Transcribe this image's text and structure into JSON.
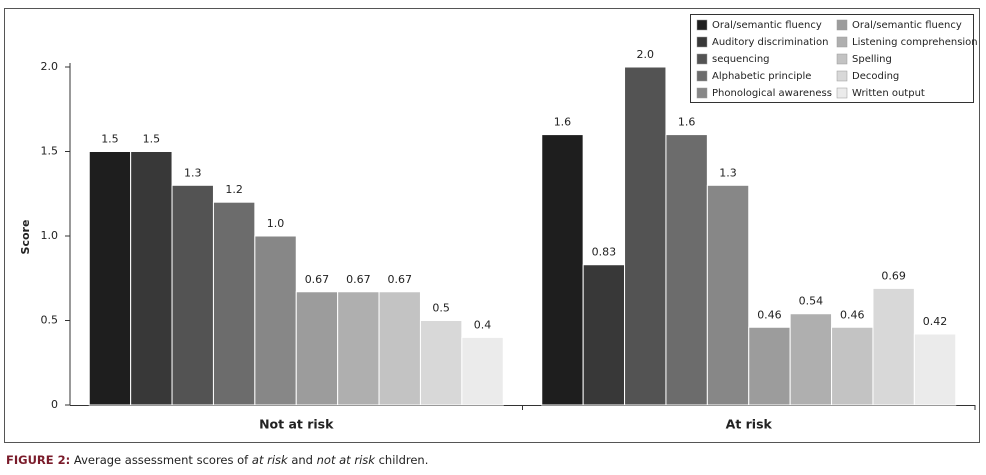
{
  "chart_data": {
    "type": "bar",
    "ylabel": "Score",
    "categories": [
      "Not at risk",
      "At risk"
    ],
    "series": [
      {
        "name": "Oral/semantic fluency",
        "color": "#1e1e1e",
        "values": [
          1.5,
          1.6
        ]
      },
      {
        "name": "Auditory discrimination",
        "color": "#383838",
        "values": [
          1.5,
          0.83
        ]
      },
      {
        "name": "sequencing",
        "color": "#535353",
        "values": [
          1.3,
          2.0
        ],
        "value_labels": [
          "1.3",
          "2.0"
        ]
      },
      {
        "name": "Alphabetic principle",
        "color": "#6c6c6c",
        "values": [
          1.2,
          1.6
        ]
      },
      {
        "name": "Phonological awareness",
        "color": "#878787",
        "values": [
          1.0,
          1.3
        ],
        "value_labels": [
          "1.0",
          "1.3"
        ]
      },
      {
        "name": "Oral/semantic fluency",
        "color": "#9c9c9c",
        "values": [
          0.67,
          0.46
        ]
      },
      {
        "name": "Listening comprehension",
        "color": "#afafaf",
        "values": [
          0.67,
          0.54
        ]
      },
      {
        "name": "Spelling",
        "color": "#c3c3c3",
        "values": [
          0.67,
          0.46
        ]
      },
      {
        "name": "Decoding",
        "color": "#d8d8d8",
        "values": [
          0.5,
          0.69
        ]
      },
      {
        "name": "Written output",
        "color": "#ebebeb",
        "values": [
          0.4,
          0.42
        ]
      }
    ],
    "ylim": [
      0,
      2
    ],
    "yticks": [
      0,
      0.5,
      {
        "value": 1,
        "label": "1.0"
      },
      1.5,
      {
        "value": 2,
        "label": "2.0"
      }
    ],
    "legend": "top-right"
  },
  "caption": {
    "label": "FIGURE 2:",
    "parts": [
      "Average assessment scores of",
      "at risk",
      "and",
      "not at risk",
      "children."
    ]
  }
}
